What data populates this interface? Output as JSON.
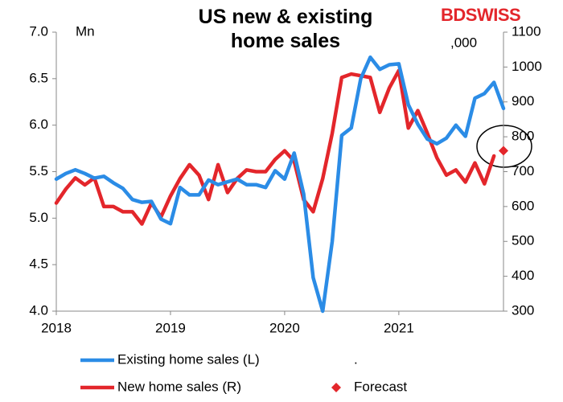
{
  "chart_data": {
    "type": "line",
    "title": "US new & existing home sales",
    "logo": "BDSWISS",
    "y_unit_label": "Mn",
    "y2_unit_label": ",000",
    "legend_extra": ".",
    "categories": [
      "2018",
      null,
      null,
      null,
      null,
      null,
      null,
      null,
      null,
      null,
      null,
      null,
      "2019",
      null,
      null,
      null,
      null,
      null,
      null,
      null,
      null,
      null,
      null,
      null,
      "2020",
      null,
      null,
      null,
      null,
      null,
      null,
      null,
      null,
      null,
      null,
      null,
      "2021",
      null,
      null,
      null,
      null,
      null,
      null,
      null,
      null,
      null,
      null,
      null
    ],
    "xticks": [
      "2018",
      "2019",
      "2020",
      "2021"
    ],
    "ylim": [
      4.0,
      7.0
    ],
    "yticks": [
      {
        "value": 4.0,
        "label": "4.0"
      },
      {
        "value": 4.5,
        "label": "4.5"
      },
      {
        "value": 5.0,
        "label": "5.0"
      },
      {
        "value": 5.5,
        "label": "5.5"
      },
      {
        "value": 6.0,
        "label": "6.0"
      },
      {
        "value": 6.5,
        "label": "6.5"
      },
      {
        "value": 7.0,
        "label": "7.0"
      }
    ],
    "y2lim": [
      300,
      1100
    ],
    "y2ticks": [
      300,
      400,
      500,
      600,
      700,
      800,
      900,
      1000,
      1100
    ],
    "grid": false,
    "series": [
      {
        "name": "Existing home sales (L)",
        "color": "#2b8ce6",
        "axis": "y",
        "marker": "line",
        "values": [
          5.42,
          5.48,
          5.52,
          5.48,
          5.43,
          5.45,
          5.38,
          5.32,
          5.2,
          5.17,
          5.18,
          4.99,
          4.94,
          5.33,
          5.25,
          5.25,
          5.41,
          5.36,
          5.39,
          5.42,
          5.36,
          5.36,
          5.33,
          5.51,
          5.42,
          5.7,
          5.26,
          4.36,
          4.0,
          4.75,
          5.89,
          5.97,
          6.5,
          6.73,
          6.6,
          6.65,
          6.66,
          6.22,
          6.01,
          5.85,
          5.8,
          5.86,
          6.0,
          5.88,
          6.29,
          6.34,
          6.46,
          6.18
        ]
      },
      {
        "name": "New home sales (R)",
        "color": "#e3262b",
        "axis": "y2",
        "marker": "line",
        "values": [
          610,
          650,
          682,
          662,
          682,
          600,
          600,
          585,
          585,
          550,
          610,
          570,
          630,
          680,
          720,
          690,
          620,
          720,
          640,
          680,
          705,
          700,
          700,
          735,
          760,
          730,
          620,
          585,
          680,
          810,
          970,
          980,
          975,
          970,
          870,
          940,
          990,
          825,
          875,
          810,
          740,
          690,
          705,
          670,
          725,
          665,
          745,
          null
        ]
      },
      {
        "name": "Forecast",
        "color": "#e3262b",
        "axis": "y2",
        "marker": "diamond",
        "values": [
          null,
          null,
          null,
          null,
          null,
          null,
          null,
          null,
          null,
          null,
          null,
          null,
          null,
          null,
          null,
          null,
          null,
          null,
          null,
          null,
          null,
          null,
          null,
          null,
          null,
          null,
          null,
          null,
          null,
          null,
          null,
          null,
          null,
          null,
          null,
          null,
          null,
          null,
          null,
          null,
          null,
          null,
          null,
          null,
          null,
          null,
          null,
          760
        ]
      }
    ]
  }
}
